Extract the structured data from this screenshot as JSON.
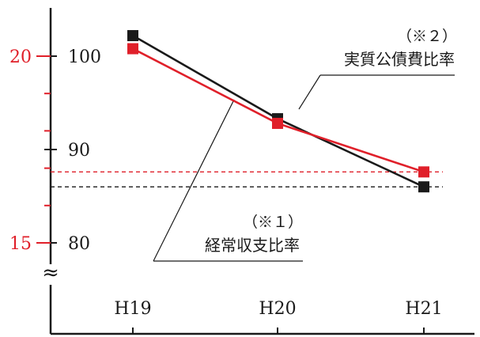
{
  "chart_data": {
    "type": "line",
    "categories": [
      "H19",
      "H20",
      "H21"
    ],
    "left_axis": {
      "ticks": [
        "80",
        "90",
        "100"
      ],
      "tick_values": [
        80,
        90,
        100
      ],
      "range": [
        75,
        105
      ]
    },
    "right_axis": {
      "ticks": [
        "15",
        "20"
      ],
      "tick_values": [
        15,
        20
      ],
      "minor_tick_values": [
        16,
        17,
        18,
        19
      ],
      "range": [
        12.5,
        22.5
      ]
    },
    "series": [
      {
        "name": "経常収支比率",
        "axis": "left",
        "color": "#1a1a1a",
        "values": [
          102.2,
          93.3,
          86.0
        ],
        "note": "（※１）",
        "reference_value": 86.0
      },
      {
        "name": "実質公債費比率",
        "axis": "right",
        "color": "#e0202a",
        "values": [
          20.2,
          18.2,
          16.9
        ],
        "note": "（※２）",
        "reference_value": 16.9
      }
    ],
    "axis_break": "≈",
    "grid": false,
    "legend": "inline-callouts"
  }
}
